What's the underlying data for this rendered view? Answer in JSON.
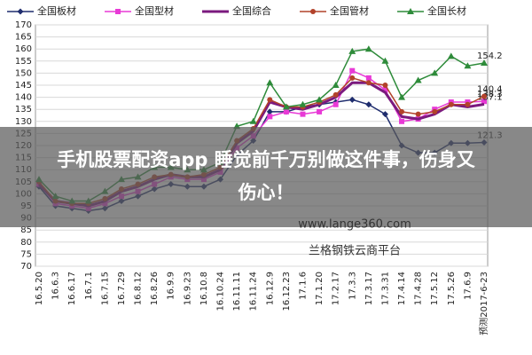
{
  "chart_data": {
    "type": "line",
    "categories": [
      "16.5.20",
      "16.6.3",
      "16.6.17",
      "16.7.1",
      "16.7.15",
      "16.7.29",
      "16.8.12",
      "16.8.26",
      "16.9.9",
      "16.9.23",
      "16.10.8",
      "16.10.24",
      "16.11.11",
      "16.11.24",
      "16.12.9",
      "16.12.23",
      "17.1.6",
      "17.1.20",
      "17.2.17",
      "17.3.3",
      "17.3.17",
      "17.3.31",
      "17.4.14",
      "17.4.28",
      "17.5.12",
      "17.5.26",
      "17.6.9",
      "预测2017-6-23"
    ],
    "series": [
      {
        "name": "全国板材",
        "color": "#1f2d6e",
        "marker": "diamond",
        "values": [
          103,
          95,
          94,
          93,
          94,
          97,
          99,
          102,
          104,
          103,
          103,
          106,
          116,
          122,
          134,
          134,
          136,
          137,
          138,
          139,
          137,
          133,
          120,
          117,
          117,
          121,
          121,
          121.3
        ]
      },
      {
        "name": "全国型材",
        "color": "#e83ad6",
        "marker": "square",
        "values": [
          104,
          96,
          95,
          94,
          96,
          99,
          101,
          104,
          107,
          106,
          106,
          109,
          119,
          124,
          132,
          134,
          133,
          134,
          137,
          151,
          148,
          143,
          130,
          131,
          135,
          138,
          138,
          138.3
        ]
      },
      {
        "name": "全国综合",
        "color": "#7b1a7e",
        "marker": "none",
        "values": [
          104,
          97,
          96,
          95,
          97,
          101,
          103,
          106,
          108,
          107,
          107,
          110,
          121,
          126,
          138,
          136,
          135,
          137,
          140,
          146,
          146,
          142,
          132,
          131,
          133,
          137,
          136,
          137.1
        ]
      },
      {
        "name": "全国管材",
        "color": "#b2422a",
        "marker": "circle",
        "values": [
          105,
          97,
          96,
          96,
          98,
          102,
          104,
          107,
          108,
          107,
          108,
          111,
          122,
          127,
          139,
          136,
          136,
          138,
          141,
          148,
          146,
          145,
          134,
          133,
          134,
          137,
          137,
          140.4
        ]
      },
      {
        "name": "全国长材",
        "color": "#2e8b3a",
        "marker": "triangle",
        "values": [
          106,
          99,
          97,
          97,
          101,
          106,
          107,
          111,
          111,
          110,
          110,
          113,
          128,
          130,
          146,
          136,
          137,
          139,
          145,
          159,
          160,
          155,
          140,
          147,
          150,
          157,
          153,
          154.2
        ]
      }
    ],
    "ylim": [
      70,
      170
    ],
    "yticks": [
      70,
      75,
      80,
      85,
      90,
      95,
      100,
      105,
      110,
      115,
      120,
      125,
      130,
      135,
      140,
      145,
      150,
      155,
      160,
      165,
      170
    ],
    "grid": true
  },
  "banner": {
    "line1": "手机股票配资app 睡觉前千万别做这件事，伤身又",
    "line2": "伤心！"
  },
  "watermark": {
    "url": "www.lange360.com",
    "name": "兰格钢铁云商平台"
  }
}
